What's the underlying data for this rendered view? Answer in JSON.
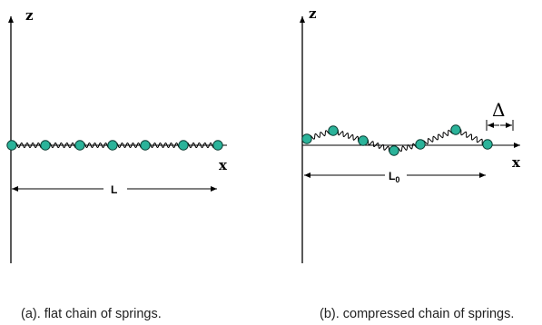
{
  "panel_a": {
    "z_label": "z",
    "x_label": "x",
    "length_label": "L",
    "caption": "(a).  flat chain of springs."
  },
  "panel_b": {
    "z_label": "z",
    "x_label": "x",
    "length_label": "L",
    "length_subscript": "0",
    "delta_label": "Δ",
    "caption": "(b). compressed chain of springs."
  },
  "colors": {
    "mass": "#2bb39a",
    "mass_outline": "#0c3d33",
    "line": "#000000"
  }
}
